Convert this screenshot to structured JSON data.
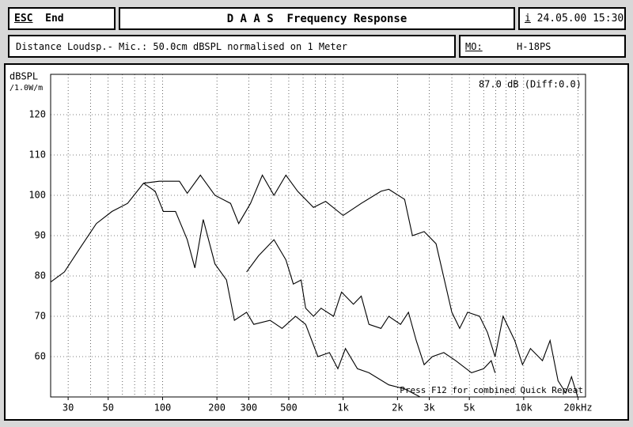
{
  "header": {
    "esc": "ESC",
    "end": "End",
    "title": "D A A S  Frequency Response",
    "info_icon": "i",
    "datetime": "24.05.00 15:30"
  },
  "info_bar": {
    "text": "Distance Loudsp.- Mic.: 50.0cm dBSPL normalised on 1 Meter",
    "mo_label": "MO:",
    "mo_value": "H-18PS"
  },
  "chart_data": {
    "type": "line",
    "y_label": [
      "dBSPL",
      "/1.0W/m"
    ],
    "annotations": [
      "87.0 dB (Diff:0.0)",
      "Press F12 for combined Quick Repeat"
    ],
    "log_x": true,
    "grid": true,
    "xlim": [
      24,
      22000
    ],
    "ylim": [
      50,
      130
    ],
    "xticks": [
      30,
      50,
      100,
      200,
      300,
      500,
      {
        "value": 1000,
        "label": "1k"
      },
      {
        "value": 2000,
        "label": "2k"
      },
      {
        "value": 3000,
        "label": "3k"
      },
      {
        "value": 5000,
        "label": "5k"
      },
      {
        "value": 10000,
        "label": "10k"
      },
      {
        "value": 20000,
        "label": "20kHz"
      }
    ],
    "xgrid": [
      30,
      40,
      50,
      60,
      70,
      80,
      90,
      100,
      200,
      300,
      400,
      500,
      600,
      700,
      800,
      900,
      1000,
      2000,
      3000,
      4000,
      5000,
      6000,
      7000,
      8000,
      9000,
      10000,
      20000
    ],
    "yticks": [
      60,
      70,
      80,
      90,
      100,
      110,
      120
    ],
    "series": [
      {
        "color": "#000000",
        "x": [
          24,
          28.6,
          35,
          43,
          52.5,
          64,
          78.5,
          96,
          124,
          137,
          162,
          195,
          238,
          264,
          307,
          357,
          414,
          482,
          560,
          685,
          800,
          1000,
          1260,
          1620,
          1790,
          2190,
          2420,
          2810,
          3270,
          4000,
          4420,
          4890,
          5700,
          6300,
          6940,
          7690,
          8920,
          9850,
          10900,
          12700,
          14000,
          15500,
          17100,
          18400,
          19900
        ],
        "values": [
          78.5,
          81,
          87,
          93,
          96,
          98,
          103,
          103.5,
          103.5,
          100.5,
          105,
          100,
          98,
          93,
          98,
          105,
          100,
          105,
          101,
          97,
          98.5,
          95,
          98,
          101,
          101.5,
          99,
          90,
          91,
          88,
          71,
          67,
          71,
          70,
          66,
          60,
          70,
          64,
          58,
          62,
          59,
          64,
          54,
          51,
          55,
          50
        ]
      },
      {
        "color": "#000000",
        "x": [
          78.5,
          91,
          101,
          118,
          137,
          151,
          168,
          195,
          226,
          250,
          292,
          320,
          394,
          459,
          545,
          620,
          725,
          840,
          935,
          1030,
          1200,
          1390,
          1790,
          2190,
          2670
        ],
        "values": [
          103,
          101,
          96,
          96,
          89,
          82,
          94,
          83,
          79,
          69,
          71,
          68,
          69,
          67,
          70,
          68,
          60,
          61,
          57,
          62,
          57,
          56,
          53,
          52,
          50
        ]
      },
      {
        "color": "#000000",
        "x": [
          292,
          340,
          414,
          482,
          530,
          585,
          620,
          685,
          755,
          885,
          980,
          1140,
          1260,
          1390,
          1620,
          1790,
          2080,
          2300,
          2540,
          2810,
          3120,
          3610,
          4200,
          5140,
          6000,
          6610,
          6940
        ],
        "values": [
          81,
          85,
          89,
          84,
          78,
          79,
          72,
          70,
          72,
          70,
          76,
          73,
          75,
          68,
          67,
          70,
          68,
          71,
          64,
          58,
          60,
          61,
          59,
          56,
          57,
          59,
          56
        ]
      }
    ]
  }
}
